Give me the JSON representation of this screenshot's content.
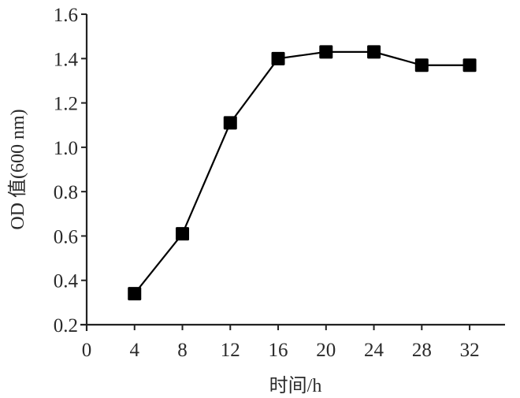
{
  "chart_data": {
    "type": "line",
    "title": "",
    "xlabel": "时间/h",
    "ylabel": "OD 值(600 nm)",
    "x": [
      4,
      8,
      12,
      16,
      20,
      24,
      28,
      32
    ],
    "series": [
      {
        "name": "OD600",
        "values": [
          0.34,
          0.61,
          1.11,
          1.4,
          1.43,
          1.43,
          1.37,
          1.37
        ],
        "marker": "square",
        "color": "#000000"
      }
    ],
    "xticks": [
      "0",
      "4",
      "8",
      "12",
      "16",
      "20",
      "24",
      "28",
      "32"
    ],
    "yticks": [
      "0.2",
      "0.4",
      "0.6",
      "0.8",
      "1.0",
      "1.2",
      "1.4",
      "1.6"
    ],
    "xlim": [
      0,
      35
    ],
    "ylim": [
      0.2,
      1.6
    ],
    "grid": false,
    "legend": null
  }
}
